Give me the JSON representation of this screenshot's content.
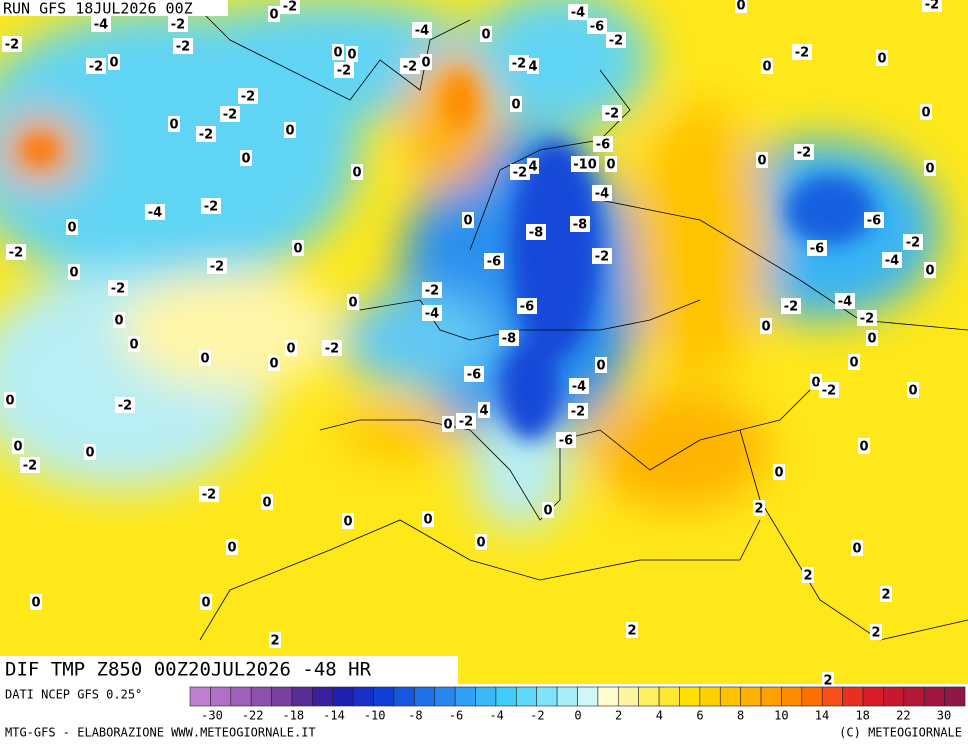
{
  "header": "RUN GFS 18JUL2026 00Z",
  "map_title": "DIF TMP Z850 00Z20JUL2026 -48 HR",
  "source": "DATI NCEP GFS 0.25°",
  "credit_left": "MTG-GFS - ELABORAZIONE WWW.METEOGIORNALE.IT",
  "credit_right": "(C) METEOGIORNALE",
  "colorbar": {
    "colors": [
      "#c080d0",
      "#b070c8",
      "#a060bc",
      "#9050b0",
      "#7a3fa0",
      "#5a2c96",
      "#3a20a0",
      "#2020b0",
      "#1830c8",
      "#1040d8",
      "#1858e0",
      "#2070ea",
      "#2888f0",
      "#30a0f4",
      "#38b8f8",
      "#40ccf8",
      "#60d8f8",
      "#80e4f8",
      "#a8eef8",
      "#d0f6fa",
      "#fffad0",
      "#fff4a0",
      "#fff060",
      "#ffe830",
      "#ffe000",
      "#ffd000",
      "#ffc000",
      "#ffb000",
      "#ffa000",
      "#ff8c00",
      "#ff7000",
      "#f85018",
      "#e83020",
      "#d81c28",
      "#c81830",
      "#b41838",
      "#a01840",
      "#901848"
    ],
    "ticks": [
      -30,
      -22,
      -18,
      -14,
      -10,
      -8,
      -6,
      -4,
      -2,
      0,
      2,
      4,
      6,
      8,
      10,
      14,
      18,
      22,
      30
    ]
  },
  "contour_labels": [
    -2,
    -4,
    0,
    -2,
    -4,
    -6,
    0,
    -2,
    -2,
    -2,
    0,
    -4,
    0,
    -2,
    -2,
    0,
    0,
    -2,
    -2,
    0,
    -2,
    4,
    -2,
    0,
    0,
    -2,
    -2,
    0,
    -2,
    0,
    0,
    -2,
    0,
    -6,
    -2,
    0,
    0,
    -2,
    4,
    -10,
    0,
    0,
    0,
    -4,
    -2,
    -4,
    0,
    -8,
    -6,
    0,
    -2,
    0,
    -8,
    -2,
    -6,
    -2,
    -6,
    -4,
    -2,
    0,
    0,
    -2,
    0,
    -2,
    -4,
    -6,
    -2,
    -4,
    -2,
    0,
    0,
    0,
    0,
    -2,
    -8,
    0,
    0,
    0,
    0,
    0,
    -6,
    0,
    -2,
    -4,
    0,
    -2,
    0,
    -2,
    4,
    -2,
    0,
    -6,
    0,
    0,
    -2,
    0,
    0,
    -2,
    0,
    2,
    0,
    0,
    0,
    0,
    0,
    0,
    2,
    0,
    0,
    2,
    2,
    2,
    2,
    2
  ]
}
